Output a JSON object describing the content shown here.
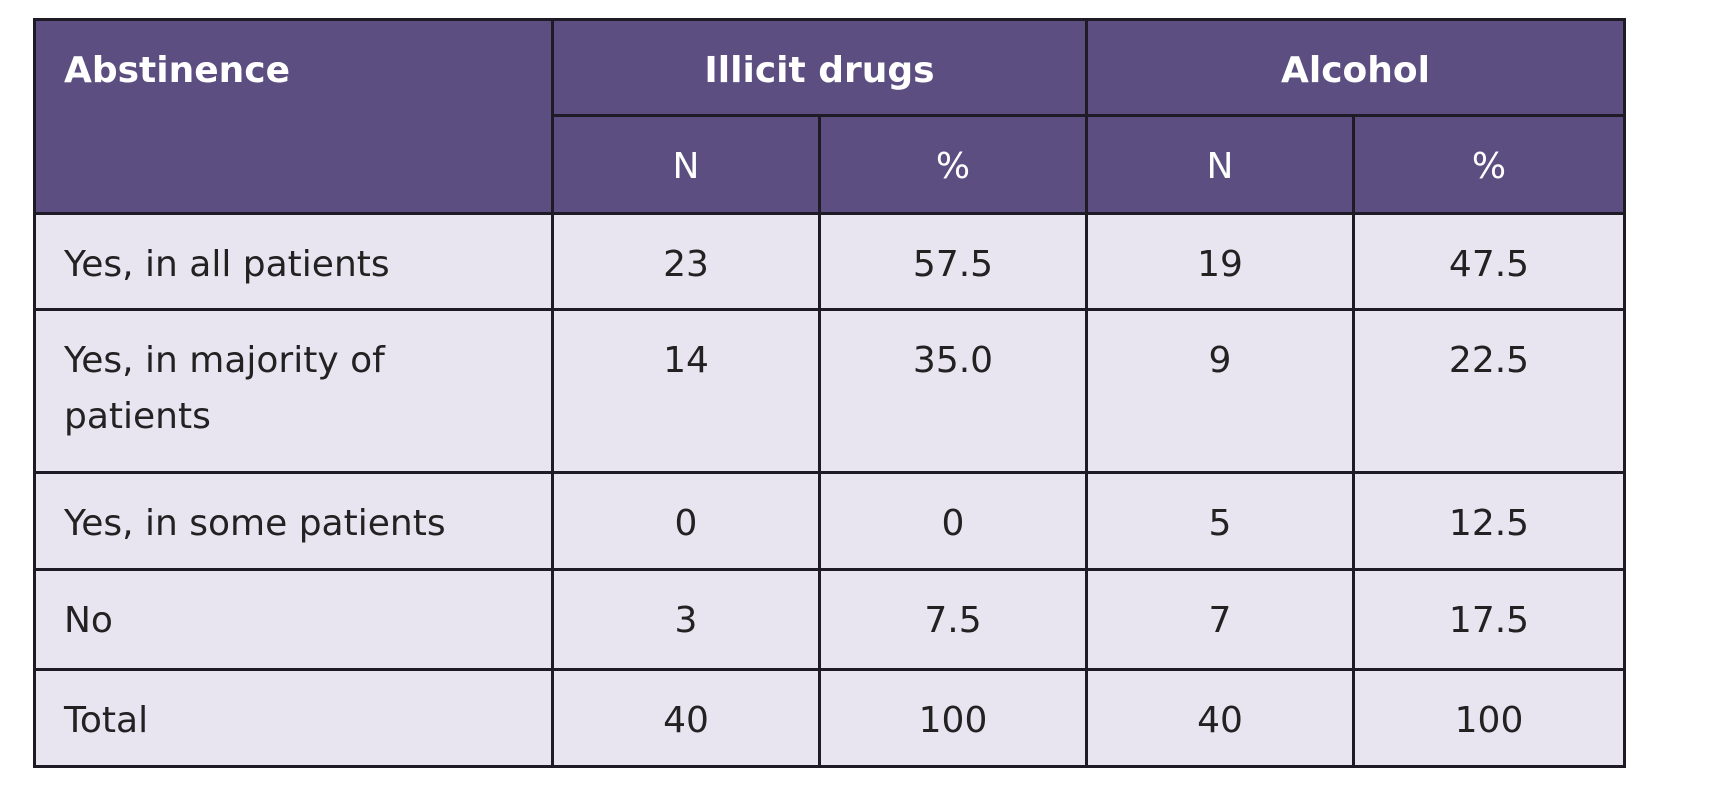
{
  "table": {
    "header": {
      "groups": [
        "Abstinence",
        "Illicit drugs",
        "Alcohol"
      ],
      "sub": [
        "N",
        "%",
        "N",
        "%"
      ]
    },
    "rows": [
      [
        "Yes, in all patients",
        "23",
        "57.5",
        "19",
        "47.5"
      ],
      [
        "Yes, in majority of patients",
        "14",
        "35.0",
        "9",
        "22.5"
      ],
      [
        "Yes, in some patients",
        "0",
        "0",
        "5",
        "12.5"
      ],
      [
        "No",
        "3",
        "7.5",
        "7",
        "17.5"
      ],
      [
        "Total",
        "40",
        "100",
        "40",
        "100"
      ]
    ]
  }
}
